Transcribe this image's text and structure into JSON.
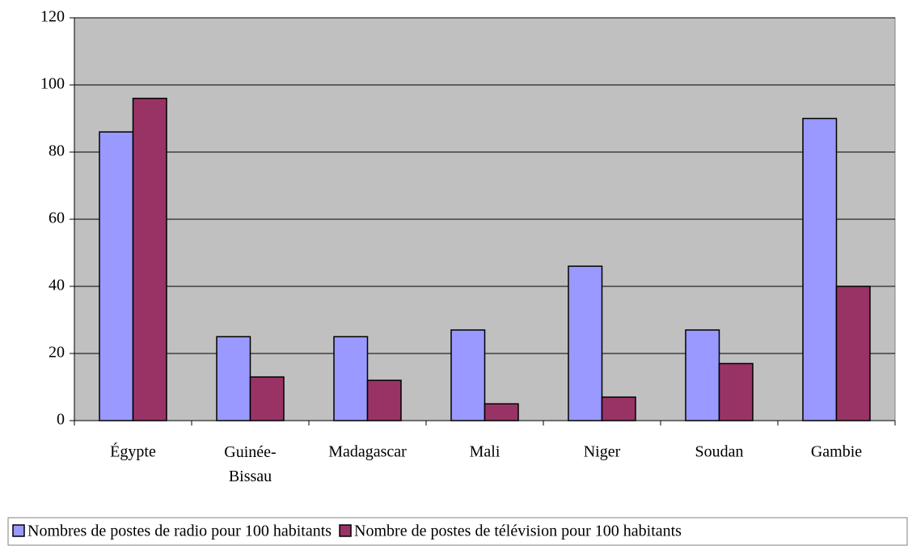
{
  "chart_data": {
    "type": "bar",
    "categories": [
      "Égypte",
      "Guinée-Bissau",
      "Madagascar",
      "Mali",
      "Niger",
      "Soudan",
      "Gambie"
    ],
    "series": [
      {
        "name": "Nombres de postes de radio pour 100 habitants",
        "color": "#9999ff",
        "values": [
          86,
          25,
          25,
          27,
          46,
          27,
          90
        ]
      },
      {
        "name": "Nombre de postes de télévision pour 100 habitants",
        "color": "#993366",
        "values": [
          96,
          13,
          12,
          5,
          7,
          17,
          40
        ]
      }
    ],
    "ylim": [
      0,
      120
    ],
    "yticks": [
      0,
      20,
      40,
      60,
      80,
      100,
      120
    ],
    "grid": true,
    "legend": "bottom"
  }
}
